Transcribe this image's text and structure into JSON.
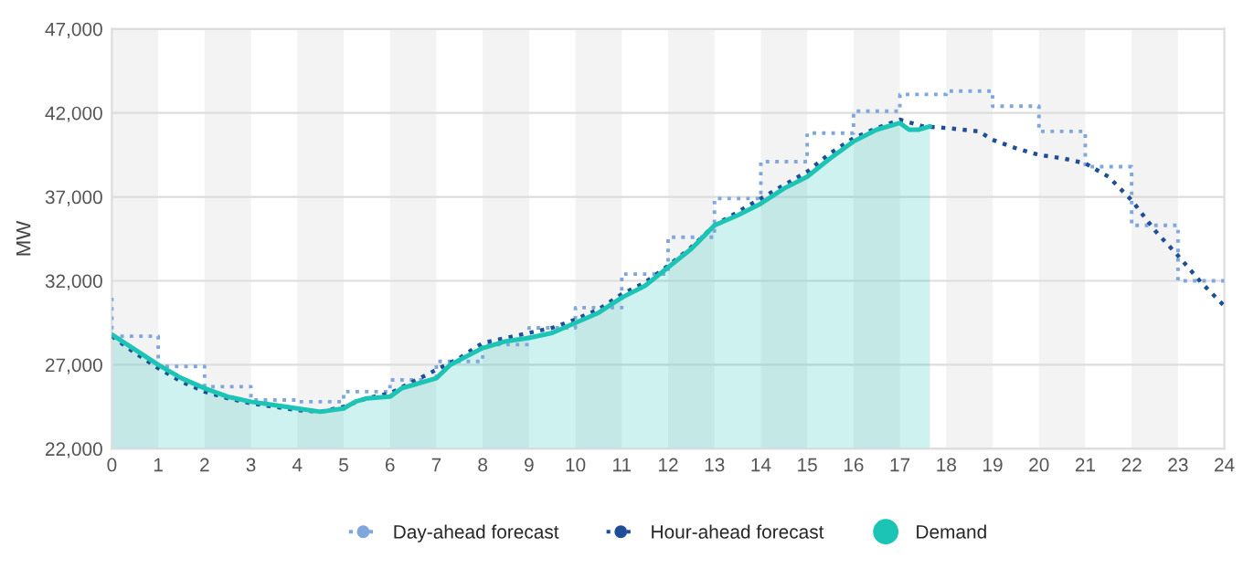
{
  "chart_data": {
    "type": "line",
    "ylabel": "MW",
    "xlim": [
      0,
      24
    ],
    "xticks": [
      0,
      1,
      2,
      3,
      4,
      5,
      6,
      7,
      8,
      9,
      10,
      11,
      12,
      13,
      14,
      15,
      16,
      17,
      18,
      19,
      20,
      21,
      22,
      23,
      24
    ],
    "ylim": [
      22000,
      47000
    ],
    "yticks": [
      {
        "value": 22000,
        "label": "22,000"
      },
      {
        "value": 27000,
        "label": "27,000"
      },
      {
        "value": 32000,
        "label": "32,000"
      },
      {
        "value": 37000,
        "label": "37,000"
      },
      {
        "value": 42000,
        "label": "42,000"
      },
      {
        "value": 47000,
        "label": "47,000"
      }
    ],
    "grid": "y",
    "legend": "bottom",
    "bands": [
      {
        "axis": "x",
        "from": 0,
        "to": 1,
        "color": "#f3f3f3"
      },
      {
        "axis": "x",
        "from": 2,
        "to": 3,
        "color": "#f3f3f3"
      },
      {
        "axis": "x",
        "from": 4,
        "to": 5,
        "color": "#f3f3f3"
      },
      {
        "axis": "x",
        "from": 6,
        "to": 7,
        "color": "#f3f3f3"
      },
      {
        "axis": "x",
        "from": 8,
        "to": 9,
        "color": "#f3f3f3"
      },
      {
        "axis": "x",
        "from": 10,
        "to": 11,
        "color": "#f3f3f3"
      },
      {
        "axis": "x",
        "from": 12,
        "to": 13,
        "color": "#f3f3f3"
      },
      {
        "axis": "x",
        "from": 14,
        "to": 15,
        "color": "#f3f3f3"
      },
      {
        "axis": "x",
        "from": 16,
        "to": 17,
        "color": "#f3f3f3"
      },
      {
        "axis": "x",
        "from": 18,
        "to": 19,
        "color": "#f3f3f3"
      },
      {
        "axis": "x",
        "from": 20,
        "to": 21,
        "color": "#f3f3f3"
      },
      {
        "axis": "x",
        "from": 22,
        "to": 23,
        "color": "#f3f3f3"
      }
    ],
    "series": [
      {
        "name": "Day-ahead forecast",
        "type": "step",
        "color": "#7fa7dc",
        "line_style": "dotted",
        "x": [
          0,
          0,
          1,
          2,
          3,
          4,
          5,
          6,
          7,
          8,
          9,
          10,
          11,
          12,
          13,
          14,
          15,
          16,
          17,
          18,
          19,
          20,
          21,
          22,
          23,
          24
        ],
        "values": [
          31000,
          28700,
          26900,
          25700,
          24900,
          24800,
          25400,
          26100,
          27200,
          28200,
          29200,
          30400,
          32400,
          34600,
          36900,
          39100,
          40800,
          42100,
          43100,
          43300,
          42400,
          40900,
          38800,
          35300,
          32000,
          32000
        ]
      },
      {
        "name": "Hour-ahead forecast",
        "color": "#1f4e99",
        "line_style": "dotted",
        "x": [
          0,
          0.5,
          1,
          1.5,
          2,
          2.5,
          3,
          3.5,
          4,
          4.5,
          5,
          5.5,
          6,
          6.5,
          7,
          7.5,
          8,
          8.5,
          9,
          9.5,
          10,
          10.5,
          11,
          11.5,
          12,
          12.5,
          13,
          13.5,
          14,
          14.5,
          15,
          15.5,
          16,
          16.5,
          17,
          17.5,
          18,
          18.7,
          19,
          19.5,
          20,
          20.5,
          21,
          21.5,
          22,
          22.5,
          23,
          23.5,
          24
        ],
        "values": [
          28700,
          27700,
          26800,
          26000,
          25400,
          25000,
          24700,
          24500,
          24300,
          24200,
          24500,
          25000,
          25300,
          26000,
          26700,
          27400,
          28300,
          28600,
          28900,
          29200,
          29700,
          30300,
          31200,
          31900,
          32900,
          34000,
          35300,
          36100,
          36900,
          37700,
          38500,
          39600,
          40500,
          41100,
          41600,
          41200,
          41100,
          40900,
          40400,
          39900,
          39500,
          39300,
          39000,
          38200,
          36800,
          35000,
          33500,
          31900,
          30500
        ]
      },
      {
        "name": "Demand",
        "type": "area",
        "color": "#1bc4b4",
        "line_style": "solid",
        "x": [
          0,
          0.5,
          1,
          1.5,
          2,
          2.5,
          3,
          3.5,
          4,
          4.5,
          5,
          5.25,
          5.5,
          6,
          6.25,
          6.5,
          7,
          7.3,
          8,
          8.5,
          9,
          9.5,
          10,
          10.5,
          11,
          11.5,
          12,
          12.5,
          13,
          13.5,
          14,
          14.5,
          15,
          15.5,
          16,
          16.5,
          17,
          17.2,
          17.4,
          17.65
        ],
        "values": [
          28800,
          27900,
          27000,
          26200,
          25600,
          25100,
          24800,
          24600,
          24400,
          24200,
          24400,
          24800,
          25000,
          25100,
          25600,
          25800,
          26200,
          27000,
          28000,
          28400,
          28600,
          28900,
          29500,
          30100,
          31000,
          31700,
          32800,
          33900,
          35300,
          35900,
          36600,
          37500,
          38200,
          39300,
          40300,
          41000,
          41400,
          41000,
          41000,
          41200
        ]
      }
    ]
  }
}
